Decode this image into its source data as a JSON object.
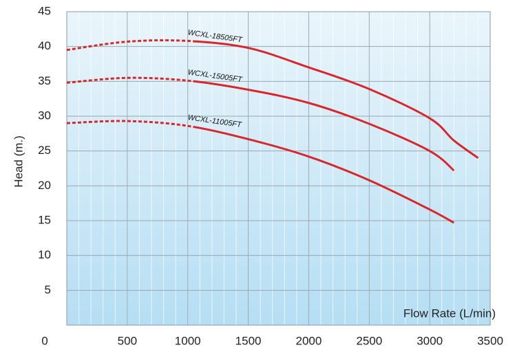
{
  "chart_data": {
    "type": "line",
    "x_label": "Flow Rate (L/min)",
    "y_label": "Head (m.)",
    "x": [
      0,
      500,
      1000,
      1500,
      2000,
      2500,
      3000,
      3200,
      3400
    ],
    "series": [
      {
        "name": "WCXL-18505FT",
        "color": "#d8262a",
        "dash_until": 1000,
        "values": [
          39.5,
          40.7,
          40.8,
          39.8,
          37,
          33.9,
          29.7,
          26.5,
          24
        ]
      },
      {
        "name": "WCXL-15005FT",
        "color": "#d8262a",
        "dash_until": 1000,
        "values": [
          34.8,
          35.5,
          35.1,
          33.8,
          31.9,
          28.9,
          25,
          22.2,
          null
        ]
      },
      {
        "name": "WCXL-11005FT",
        "color": "#d8262a",
        "dash_until": 1000,
        "values": [
          29,
          29.3,
          28.6,
          26.7,
          24.2,
          20.8,
          16.6,
          14.7,
          null
        ]
      }
    ],
    "xlim": [
      0,
      3500
    ],
    "xticks": [
      0,
      500,
      1000,
      1500,
      2000,
      2500,
      3000,
      3500
    ],
    "ylim": [
      0,
      45
    ],
    "yticks": [
      5,
      10,
      15,
      20,
      25,
      30,
      35,
      40,
      45
    ],
    "grid": true
  }
}
